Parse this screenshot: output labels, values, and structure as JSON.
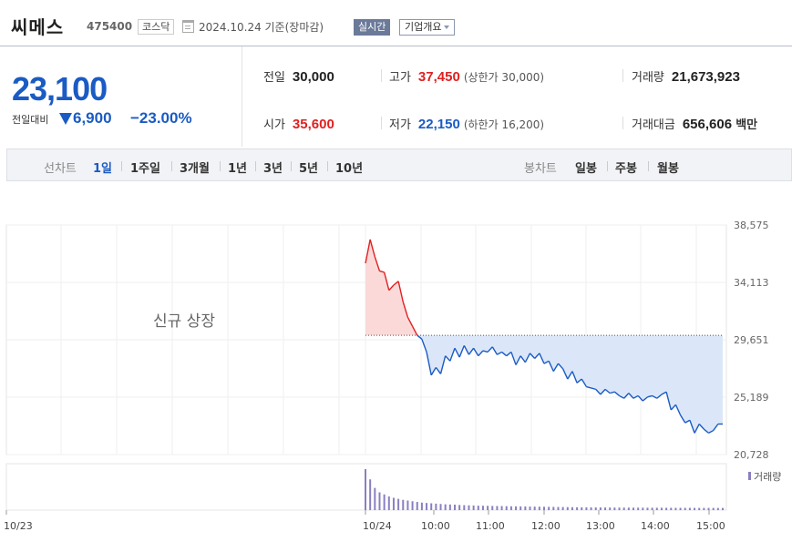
{
  "header": {
    "name": "씨메스",
    "code": "475400",
    "market": "코스닥",
    "base_date": "2024.10.24 기준(장마감)",
    "realtime_label": "실시간",
    "overview_label": "기업개요"
  },
  "quote": {
    "price": "23,100",
    "change_label": "전일대비",
    "change_value": "6,900",
    "change_rate": "−23.00%",
    "prev_close_label": "전일",
    "prev_close": "30,000",
    "high_label": "고가",
    "high": "37,450",
    "upper_limit": "(상한가 30,000)",
    "volume_label": "거래량",
    "volume": "21,673,923",
    "open_label": "시가",
    "open": "35,600",
    "low_label": "저가",
    "low": "22,150",
    "lower_limit": "(하한가 16,200)",
    "amount_label": "거래대금",
    "amount": "656,606",
    "amount_unit": "백만"
  },
  "period_bar": {
    "line_label": "선차트",
    "line_periods": [
      "1일",
      "1주일",
      "3개월",
      "1년",
      "3년",
      "5년",
      "10년"
    ],
    "active_period": "1일",
    "candle_label": "봉차트",
    "candle_periods": [
      "일봉",
      "주봉",
      "월봉"
    ]
  },
  "colors": {
    "up": "#e02020",
    "down": "#1a5bc4",
    "up_fill": "#fbd9d9",
    "down_fill": "#dbe7f8",
    "volume": "#8a7fc2"
  },
  "chart_data": {
    "type": "area",
    "title": "",
    "baseline": 30000,
    "ylim": [
      20728,
      38575
    ],
    "y_ticks": [
      "38,575",
      "34,113",
      "29,651",
      "25,189",
      "20,728"
    ],
    "x_ticks": [
      "10/23",
      "10/24",
      "10:00",
      "11:00",
      "12:00",
      "13:00",
      "14:00",
      "15:00"
    ],
    "no_data_note": "신규 상장",
    "volume_legend": "거래량",
    "series": [
      {
        "x": [
          "09:00",
          "09:05",
          "09:10",
          "09:15",
          "09:20",
          "09:25",
          "09:30",
          "09:35",
          "09:40",
          "09:45",
          "09:50",
          "09:55",
          "10:00",
          "10:05",
          "10:10",
          "10:15",
          "10:20",
          "10:25",
          "10:30",
          "10:35",
          "10:40",
          "10:45",
          "10:50",
          "10:55",
          "11:00",
          "11:05",
          "11:10",
          "11:15",
          "11:20",
          "11:25",
          "11:30",
          "11:35",
          "11:40",
          "11:45",
          "11:50",
          "11:55",
          "12:00",
          "12:05",
          "12:10",
          "12:15",
          "12:20",
          "12:25",
          "12:30",
          "12:35",
          "12:40",
          "12:45",
          "12:50",
          "12:55",
          "13:00",
          "13:05",
          "13:10",
          "13:15",
          "13:20",
          "13:25",
          "13:30",
          "13:35",
          "13:40",
          "13:45",
          "13:50",
          "13:55",
          "14:00",
          "14:05",
          "14:10",
          "14:15",
          "14:20",
          "14:25",
          "14:30",
          "14:35",
          "14:40",
          "14:45",
          "14:50",
          "14:55",
          "15:00",
          "15:05",
          "15:10",
          "15:15",
          "15:20"
        ],
        "values": [
          35600,
          37450,
          36100,
          35000,
          34900,
          33500,
          33900,
          34200,
          32600,
          31400,
          30700,
          30000,
          29700,
          28700,
          26900,
          27500,
          27000,
          28400,
          28000,
          29000,
          28300,
          29200,
          28500,
          29000,
          28400,
          28800,
          28700,
          29100,
          28500,
          28700,
          28400,
          28700,
          27700,
          28400,
          27900,
          28600,
          28200,
          28600,
          27800,
          28000,
          27200,
          27800,
          27400,
          26600,
          27200,
          26300,
          26600,
          26000,
          25900,
          25800,
          25400,
          25800,
          25500,
          25600,
          25300,
          25100,
          25500,
          25100,
          25300,
          24900,
          25200,
          25300,
          25100,
          25400,
          25600,
          24200,
          24600,
          23800,
          23200,
          23400,
          22400,
          23100,
          22700,
          22400,
          22600,
          23100,
          23100
        ]
      }
    ],
    "volume": [
      1200,
      900,
      650,
      520,
      460,
      400,
      360,
      330,
      300,
      280,
      260,
      240,
      220,
      210,
      200,
      190,
      180,
      170,
      165,
      160,
      150,
      145,
      140,
      135,
      130,
      128,
      125,
      122,
      120,
      118,
      115,
      112,
      110,
      108,
      106,
      104,
      102,
      100,
      98,
      96,
      94,
      92,
      90,
      88,
      86,
      84,
      82,
      80,
      80,
      79,
      78,
      77,
      76,
      75,
      74,
      74,
      73,
      72,
      72,
      71,
      70,
      70,
      69,
      69,
      68,
      68,
      67,
      67,
      66,
      66,
      65,
      65,
      65,
      64,
      64,
      64,
      64
    ]
  }
}
